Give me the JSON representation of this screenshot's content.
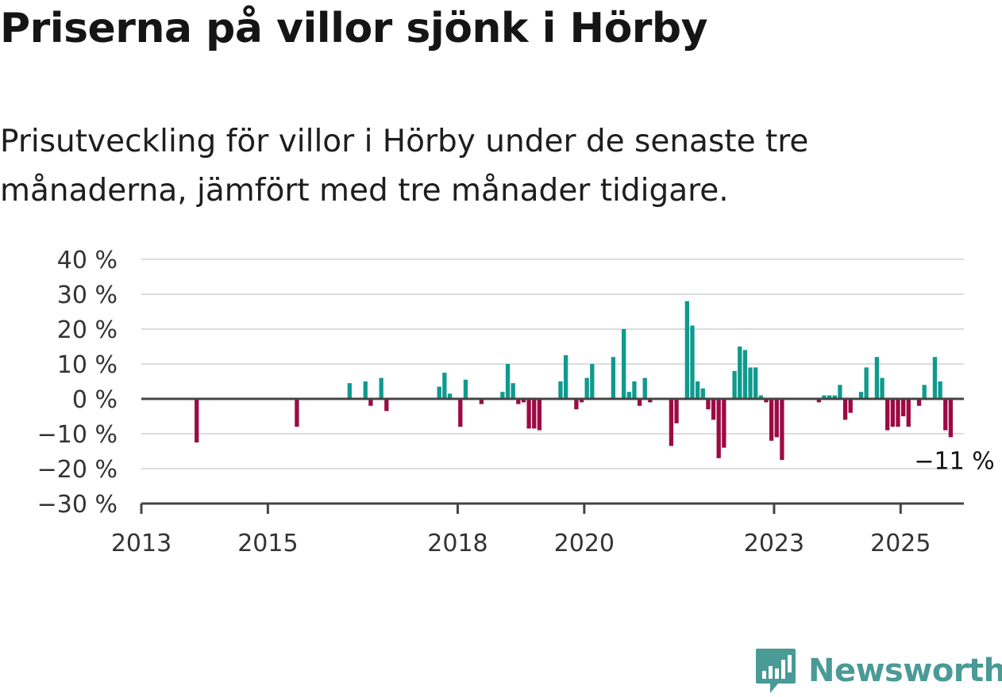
{
  "title": "Priserna på villor sjönk i Hörby",
  "subtitle_lines": [
    "Prisutveckling för villor i Hörby under de senaste tre",
    "månaderna, jämfört med tre månader tidigare."
  ],
  "brand": {
    "name": "Newsworthy",
    "color": "#4a9a96"
  },
  "colors": {
    "positive": "#0f9a8d",
    "negative": "#9c0a45",
    "grid": "#dddddd",
    "axis": "#444444"
  },
  "end_label": "−11 %",
  "chart_data": {
    "type": "bar",
    "ylim": [
      -30,
      40
    ],
    "xlim": [
      "2013-01",
      "2025-12"
    ],
    "yticks": [
      40,
      30,
      20,
      10,
      0,
      -10,
      -20,
      -30
    ],
    "ytick_labels": [
      "40 %",
      "30 %",
      "20 %",
      "10 %",
      "0 %",
      "−10 %",
      "−20 %",
      "−30 %"
    ],
    "xticks": [
      {
        "date": "2013-01",
        "label": "2013"
      },
      {
        "date": "2015-01",
        "label": "2015"
      },
      {
        "date": "2018-01",
        "label": "2018"
      },
      {
        "date": "2020-01",
        "label": "2020"
      },
      {
        "date": "2023-01",
        "label": "2023"
      },
      {
        "date": "2025-01",
        "label": "2025"
      }
    ],
    "grid": true,
    "unit": "%",
    "points": [
      {
        "date": "2013-11",
        "value": -12.5
      },
      {
        "date": "2015-06",
        "value": -8
      },
      {
        "date": "2016-04",
        "value": 4.5
      },
      {
        "date": "2016-07",
        "value": 5
      },
      {
        "date": "2016-08",
        "value": -2
      },
      {
        "date": "2016-10",
        "value": 6
      },
      {
        "date": "2016-11",
        "value": -3.5
      },
      {
        "date": "2017-09",
        "value": 3.5
      },
      {
        "date": "2017-10",
        "value": 7.5
      },
      {
        "date": "2017-11",
        "value": 1.5
      },
      {
        "date": "2018-01",
        "value": -8
      },
      {
        "date": "2018-02",
        "value": 5.5
      },
      {
        "date": "2018-05",
        "value": -1.5
      },
      {
        "date": "2018-09",
        "value": 2
      },
      {
        "date": "2018-10",
        "value": 10
      },
      {
        "date": "2018-11",
        "value": 4.5
      },
      {
        "date": "2018-12",
        "value": -1.5
      },
      {
        "date": "2019-01",
        "value": -1
      },
      {
        "date": "2019-02",
        "value": -8.5
      },
      {
        "date": "2019-03",
        "value": -8.5
      },
      {
        "date": "2019-04",
        "value": -9
      },
      {
        "date": "2019-08",
        "value": 5
      },
      {
        "date": "2019-09",
        "value": 12.5
      },
      {
        "date": "2019-11",
        "value": -3
      },
      {
        "date": "2019-12",
        "value": -1
      },
      {
        "date": "2020-01",
        "value": 6
      },
      {
        "date": "2020-02",
        "value": 10
      },
      {
        "date": "2020-06",
        "value": 12
      },
      {
        "date": "2020-08",
        "value": 20
      },
      {
        "date": "2020-09",
        "value": 2
      },
      {
        "date": "2020-10",
        "value": 5
      },
      {
        "date": "2020-11",
        "value": -2
      },
      {
        "date": "2020-12",
        "value": 6
      },
      {
        "date": "2021-01",
        "value": -1
      },
      {
        "date": "2021-05",
        "value": -13.5
      },
      {
        "date": "2021-06",
        "value": -7
      },
      {
        "date": "2021-08",
        "value": 28
      },
      {
        "date": "2021-09",
        "value": 21
      },
      {
        "date": "2021-10",
        "value": 5
      },
      {
        "date": "2021-11",
        "value": 3
      },
      {
        "date": "2021-12",
        "value": -3
      },
      {
        "date": "2022-01",
        "value": -6
      },
      {
        "date": "2022-02",
        "value": -17
      },
      {
        "date": "2022-03",
        "value": -14
      },
      {
        "date": "2022-05",
        "value": 8
      },
      {
        "date": "2022-06",
        "value": 15
      },
      {
        "date": "2022-07",
        "value": 14
      },
      {
        "date": "2022-08",
        "value": 9
      },
      {
        "date": "2022-09",
        "value": 9
      },
      {
        "date": "2022-10",
        "value": 1
      },
      {
        "date": "2022-11",
        "value": -1
      },
      {
        "date": "2022-12",
        "value": -12
      },
      {
        "date": "2023-01",
        "value": -11
      },
      {
        "date": "2023-02",
        "value": -17.5
      },
      {
        "date": "2023-09",
        "value": -1
      },
      {
        "date": "2023-10",
        "value": 1
      },
      {
        "date": "2023-11",
        "value": 1
      },
      {
        "date": "2023-12",
        "value": 1
      },
      {
        "date": "2024-01",
        "value": 4
      },
      {
        "date": "2024-02",
        "value": -6
      },
      {
        "date": "2024-03",
        "value": -4
      },
      {
        "date": "2024-05",
        "value": 2
      },
      {
        "date": "2024-06",
        "value": 9
      },
      {
        "date": "2024-08",
        "value": 12
      },
      {
        "date": "2024-09",
        "value": 6
      },
      {
        "date": "2024-10",
        "value": -9
      },
      {
        "date": "2024-11",
        "value": -8
      },
      {
        "date": "2024-12",
        "value": -8
      },
      {
        "date": "2025-01",
        "value": -5
      },
      {
        "date": "2025-02",
        "value": -8
      },
      {
        "date": "2025-04",
        "value": -2
      },
      {
        "date": "2025-05",
        "value": 4
      },
      {
        "date": "2025-07",
        "value": 12
      },
      {
        "date": "2025-08",
        "value": 5
      },
      {
        "date": "2025-09",
        "value": -9
      },
      {
        "date": "2025-10",
        "value": -11
      }
    ]
  }
}
